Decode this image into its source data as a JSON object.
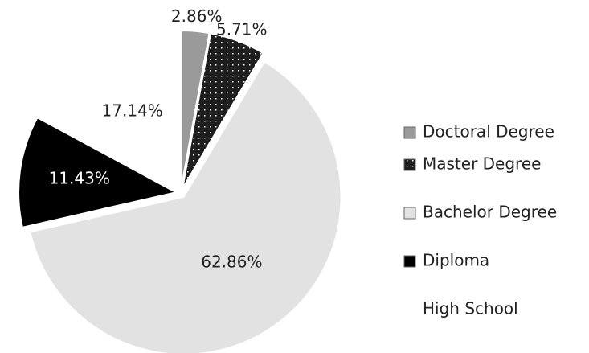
{
  "chart_data": {
    "type": "pie",
    "categories": [
      "Doctoral Degree",
      "Master Degree",
      "Bachelor Degree",
      "Diploma",
      "High School"
    ],
    "values": [
      2.86,
      5.71,
      62.86,
      11.43,
      17.14
    ],
    "value_labels": [
      "2.86%",
      "5.71%",
      "62.86%",
      "11.43%",
      "17.14%"
    ],
    "colors": [
      "#9a9a9a",
      "#1e1e1e",
      "#e2e2e2",
      "#000000",
      "#ffffff"
    ],
    "legend": "right"
  }
}
